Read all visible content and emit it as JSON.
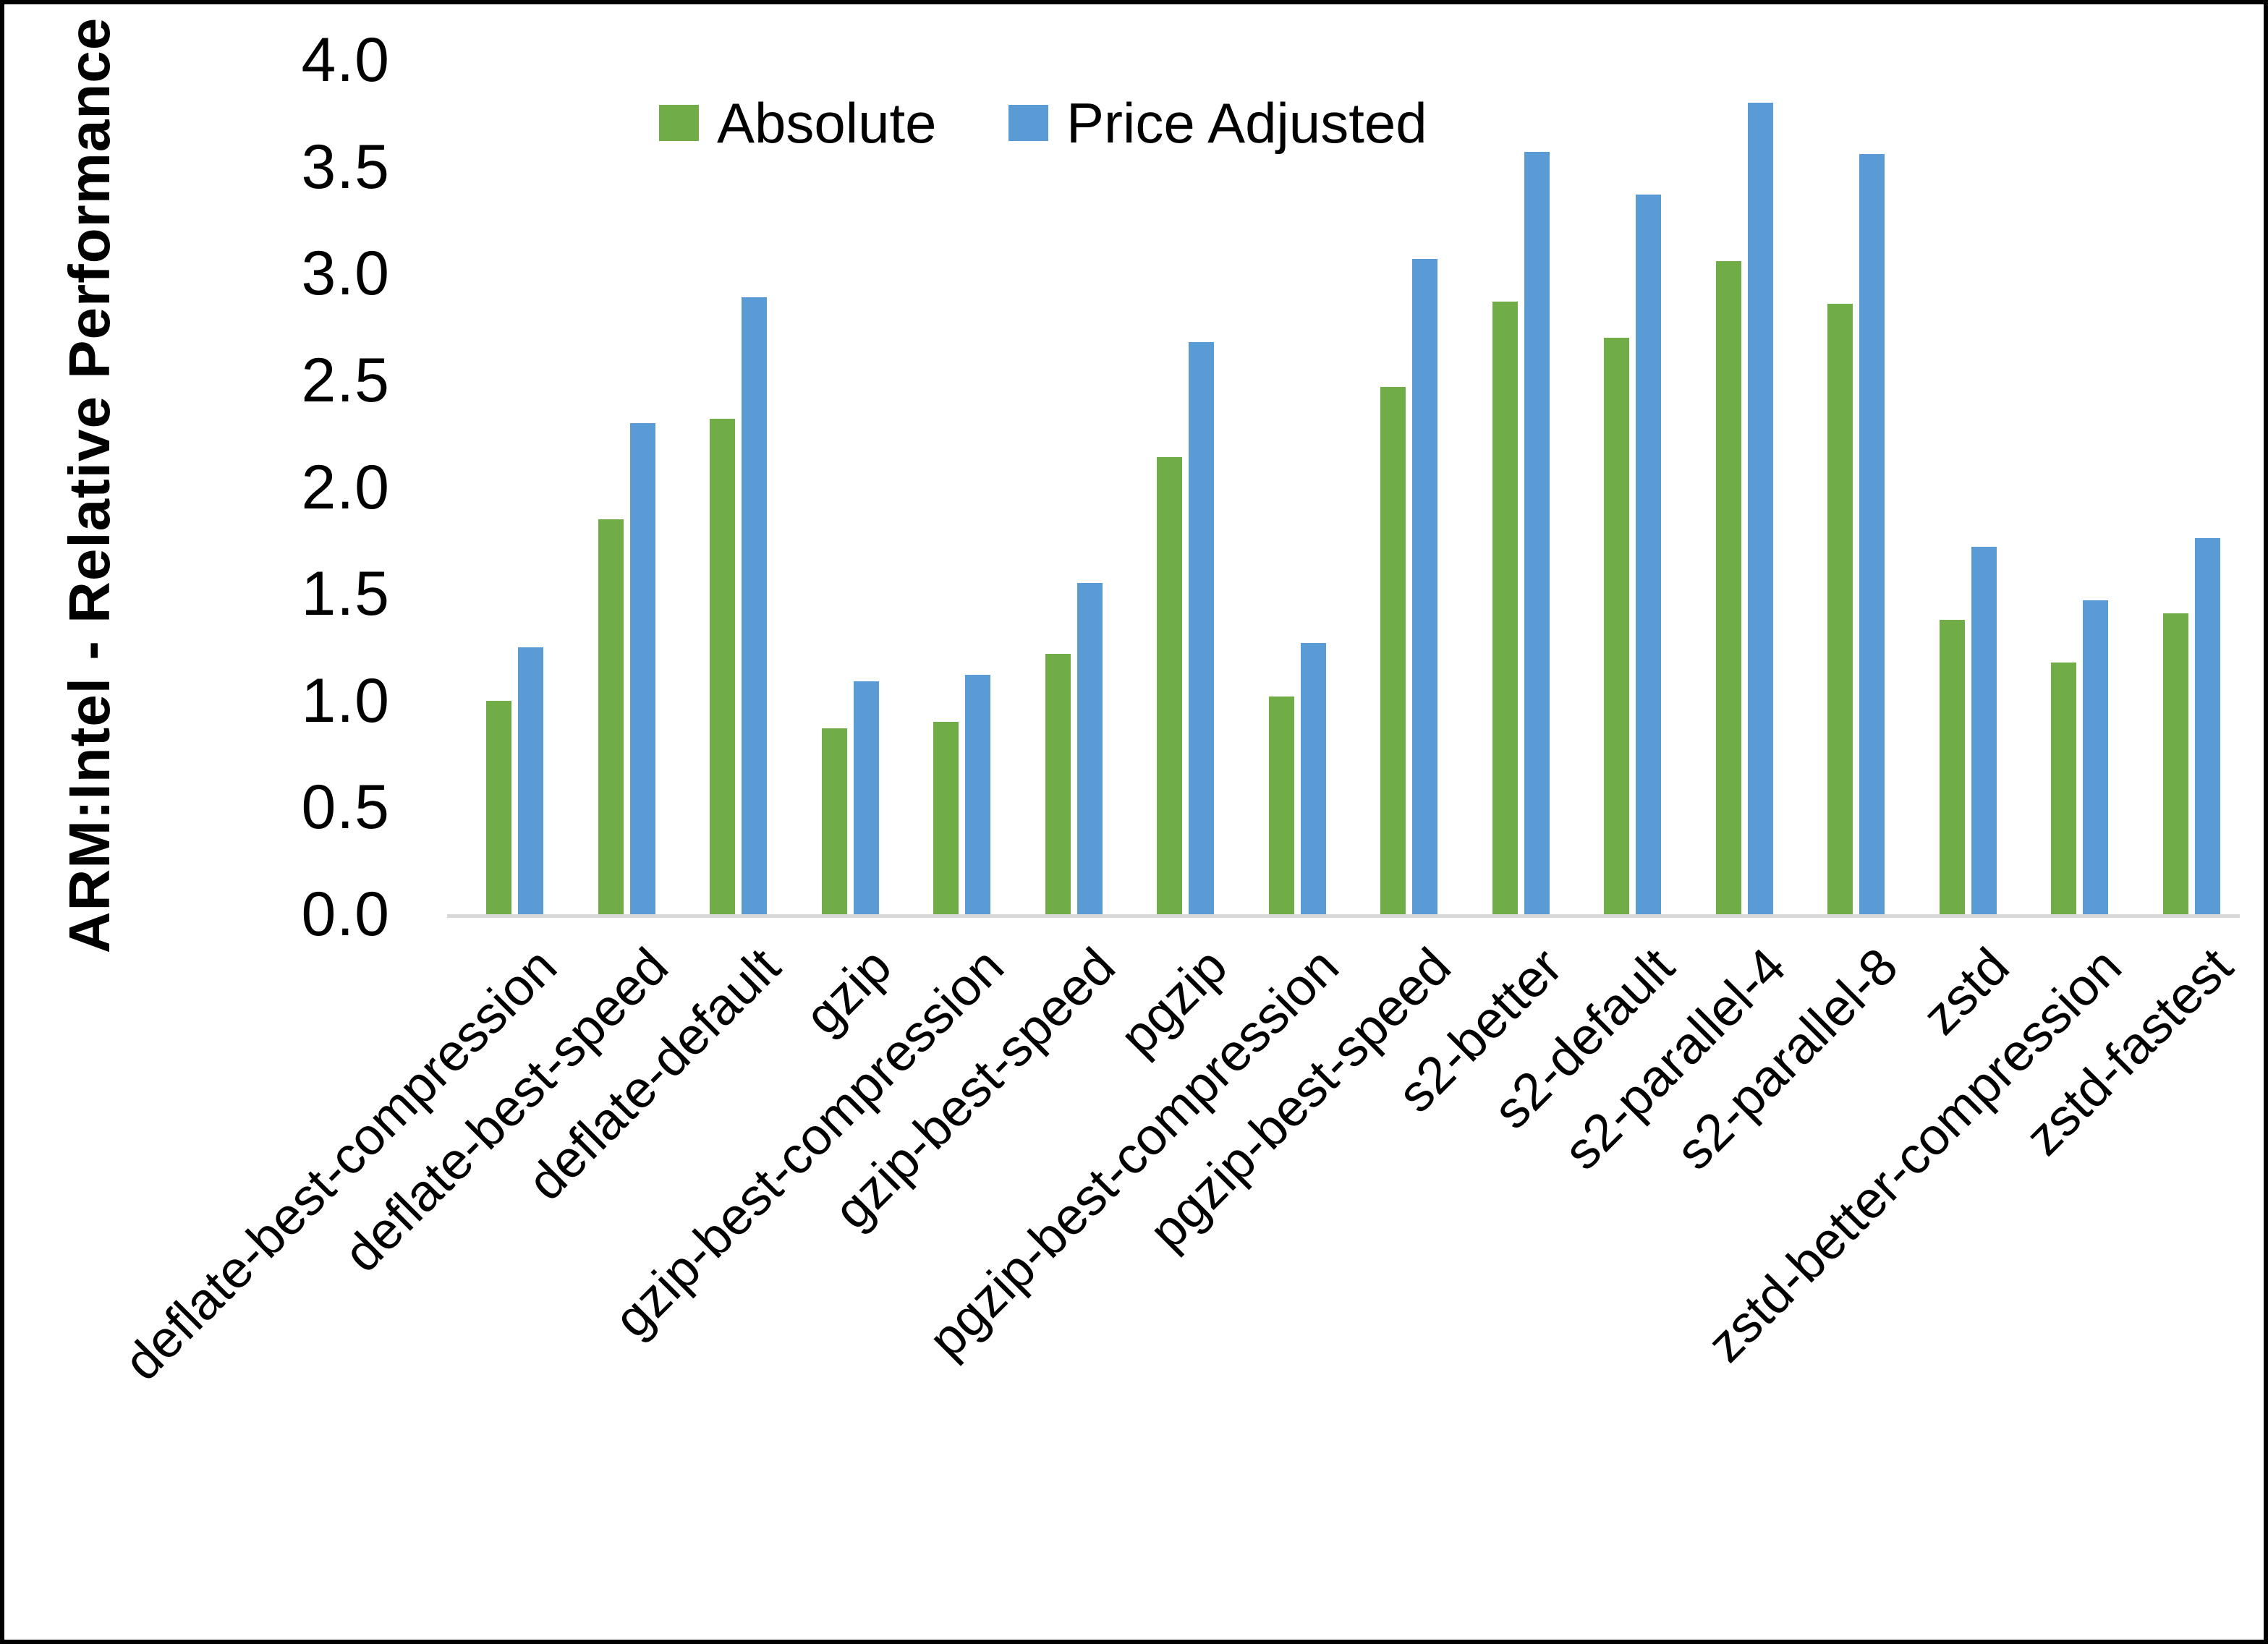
{
  "y_axis": {
    "title": "ARM:Intel - Relative Performance"
  },
  "legend": {
    "absolute_label": "Absolute",
    "price_adjusted_label": "Price Adjusted"
  },
  "chart_data": {
    "type": "bar",
    "ylabel": "ARM:Intel - Relative Performance",
    "xlabel": "",
    "ylim": [
      0.0,
      4.0
    ],
    "ytick_step": 0.5,
    "ytick_labels": [
      "0.0",
      "0.5",
      "1.0",
      "1.5",
      "2.0",
      "2.5",
      "3.0",
      "3.5",
      "4.0"
    ],
    "grid": false,
    "legend_position": "top-center",
    "categories": [
      "deflate-best-compression",
      "deflate-best-speed",
      "deflate-default",
      "gzip",
      "gzip-best-compression",
      "gzip-best-speed",
      "pgzip",
      "pgzip-best-compression",
      "pgzip-best-speed",
      "s2-better",
      "s2-default",
      "s2-parallel-4",
      "s2-parallel-8",
      "zstd",
      "zstd-better-compression",
      "zstd-fastest"
    ],
    "series": [
      {
        "name": "Absolute",
        "color": "#70AD47",
        "values": [
          1.0,
          1.85,
          2.32,
          0.87,
          0.9,
          1.22,
          2.14,
          1.02,
          2.47,
          2.87,
          2.7,
          3.06,
          2.86,
          1.38,
          1.18,
          1.41
        ]
      },
      {
        "name": "Price Adjusted",
        "color": "#5B9BD5",
        "values": [
          1.25,
          2.3,
          2.89,
          1.09,
          1.12,
          1.55,
          2.68,
          1.27,
          3.07,
          3.57,
          3.37,
          3.8,
          3.56,
          1.72,
          1.47,
          1.76
        ]
      }
    ],
    "colors": {
      "axis_line": "#D9D9D9",
      "text": "#000000",
      "background": "#FFFFFF",
      "frame_border": "#000000"
    }
  }
}
